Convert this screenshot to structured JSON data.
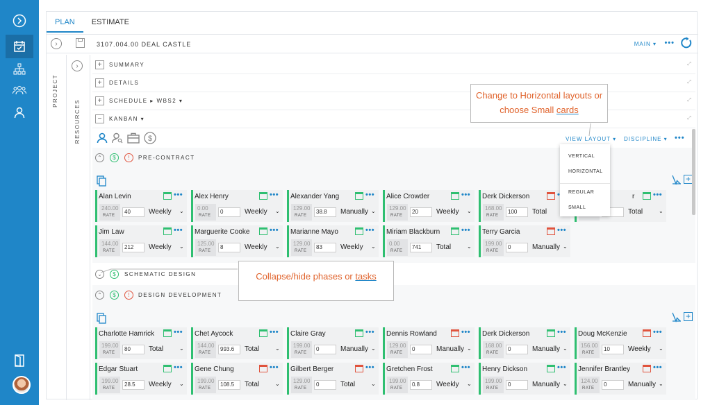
{
  "tabs": [
    {
      "label": "PLAN"
    },
    {
      "label": "ESTIMATE"
    }
  ],
  "project": {
    "title": "3107.004.00 DEAL CASTLE",
    "main_label": "MAIN ▾",
    "more": "•••"
  },
  "side_labels": {
    "project": "PROJECT",
    "resources": "RESOURCES"
  },
  "sections": [
    {
      "label": "SUMMARY",
      "toggle": "+"
    },
    {
      "label": "DETAILS",
      "toggle": "+"
    },
    {
      "label": "SCHEDULE  ▸  WBS2 ▾",
      "toggle": "+"
    },
    {
      "label": "KANBAN ▾",
      "toggle": "−"
    }
  ],
  "toolbar": {
    "view_layout": "VIEW LAYOUT ▾",
    "discipline": "DISCIPLINE ▾",
    "more": "•••"
  },
  "view_menu": {
    "items": [
      "VERTICAL",
      "HORIZONTAL",
      "REGULAR",
      "SMALL"
    ]
  },
  "phases": [
    {
      "name": "PRE-CONTRACT",
      "toggle": "⌃"
    },
    {
      "name": "SCHEMATIC DESIGN",
      "toggle": "⌄"
    },
    {
      "name": "DESIGN DEVELOPMENT",
      "toggle": "⌃"
    }
  ],
  "callouts": {
    "layout_line1": "Change to Horizontal layouts or",
    "layout_line2_pre": "choose Small ",
    "layout_line2_link": "cards",
    "collapse_pre": "Collapse/hide phases or ",
    "collapse_link": "tasks"
  },
  "rate_label": "RATE",
  "pre_contract_cards": [
    {
      "name": "Alan Levin",
      "rate": "240.00",
      "qty": "40",
      "mode": "Weekly",
      "cal": "green"
    },
    {
      "name": "Alex Henry",
      "rate": "0.00",
      "qty": "0",
      "mode": "Weekly",
      "cal": "green"
    },
    {
      "name": "Alexander Yang",
      "rate": "129.00",
      "qty": "38.8",
      "mode": "Manually",
      "cal": "green"
    },
    {
      "name": "Alice Crowder",
      "rate": "129.00",
      "qty": "20",
      "mode": "Weekly",
      "cal": "green"
    },
    {
      "name": "Derk Dickerson",
      "rate": "168.00",
      "qty": "100",
      "mode": "Total",
      "cal": "red"
    },
    {
      "name": "r",
      "rate": "",
      "qty": "",
      "mode": "Total",
      "cal": "green"
    },
    {
      "name": "Jim Law",
      "rate": "144.00",
      "qty": "212",
      "mode": "Weekly",
      "cal": "green"
    },
    {
      "name": "Marguerite Cooke",
      "rate": "125.00",
      "qty": "8",
      "mode": "Weekly",
      "cal": "green"
    },
    {
      "name": "Marianne Mayo",
      "rate": "129.00",
      "qty": "83",
      "mode": "Weekly",
      "cal": "green"
    },
    {
      "name": "Miriam Blackburn",
      "rate": "0.00",
      "qty": "741",
      "mode": "Total",
      "cal": "green"
    },
    {
      "name": "Terry Garcia",
      "rate": "199.00",
      "qty": "0",
      "mode": "Manually",
      "cal": "red"
    }
  ],
  "design_dev_cards": [
    {
      "name": "Charlotte Hamrick",
      "rate": "199.00",
      "qty": "80",
      "mode": "Total",
      "cal": "green"
    },
    {
      "name": "Chet Aycock",
      "rate": "144.00",
      "qty": "993.6",
      "mode": "Total",
      "cal": "green"
    },
    {
      "name": "Claire Gray",
      "rate": "199.00",
      "qty": "0",
      "mode": "Manually",
      "cal": "green"
    },
    {
      "name": "Dennis Rowland",
      "rate": "129.00",
      "qty": "0",
      "mode": "Manually",
      "cal": "red"
    },
    {
      "name": "Derk Dickerson",
      "rate": "168.00",
      "qty": "0",
      "mode": "Manually",
      "cal": "green"
    },
    {
      "name": "Doug McKenzie",
      "rate": "156.00",
      "qty": "10",
      "mode": "Weekly",
      "cal": "red"
    },
    {
      "name": "Edgar Stuart",
      "rate": "199.00",
      "qty": "28.5",
      "mode": "Weekly",
      "cal": "green"
    },
    {
      "name": "Gene Chung",
      "rate": "199.00",
      "qty": "108.5",
      "mode": "Total",
      "cal": "red"
    },
    {
      "name": "Gilbert Berger",
      "rate": "129.00",
      "qty": "0",
      "mode": "Total",
      "cal": "red"
    },
    {
      "name": "Gretchen Frost",
      "rate": "199.00",
      "qty": "0.8",
      "mode": "Weekly",
      "cal": "green"
    },
    {
      "name": "Henry Dickson",
      "rate": "199.00",
      "qty": "0",
      "mode": "Manually",
      "cal": "green"
    },
    {
      "name": "Jennifer Brantley",
      "rate": "124.00",
      "qty": "0",
      "mode": "Manually",
      "cal": "red"
    }
  ],
  "icons": {
    "nav": [
      "chevron-right-icon",
      "calendar-check-icon",
      "org-chart-icon",
      "team-icon",
      "person-icon"
    ],
    "bottom": "door-exit-icon",
    "toolbar": [
      "person-icon",
      "person-search-icon",
      "briefcase-icon",
      "dollar-circle-icon"
    ]
  },
  "colors": {
    "accent": "#1f86c8",
    "nav_bg": "#1f86c8",
    "card_green": "#2fbf71",
    "alert_red": "#e0533d",
    "callout_text": "#e0632c"
  }
}
